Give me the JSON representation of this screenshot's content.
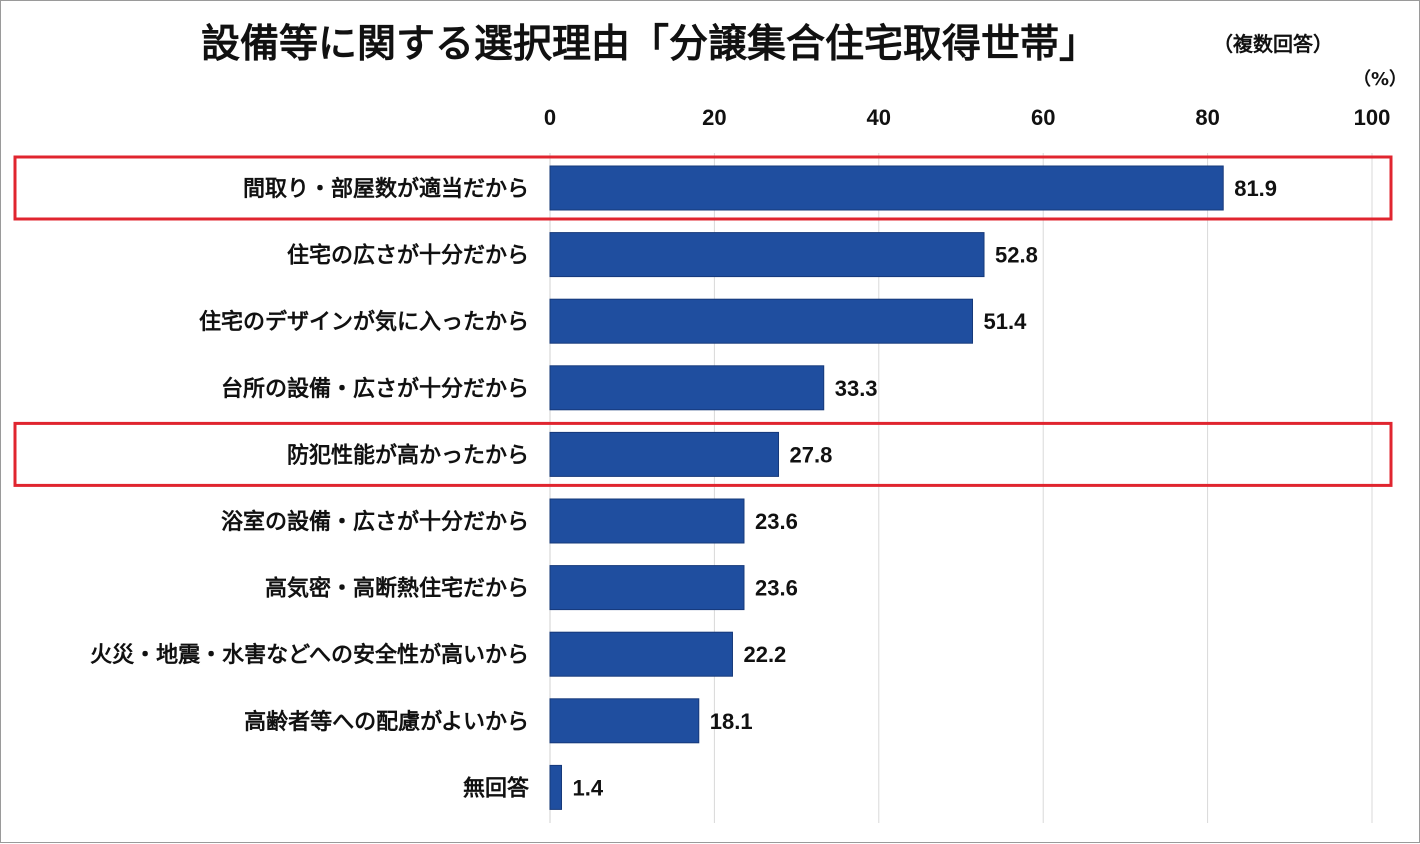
{
  "chart_data": {
    "type": "bar",
    "orientation": "horizontal",
    "title": "設備等に関する選択理由「分譲集合住宅取得世帯」",
    "subtitle": "（複数回答）",
    "unit_label": "（%）",
    "xlim": [
      0,
      100
    ],
    "x_ticks": [
      "0",
      "20",
      "40",
      "60",
      "80",
      "100"
    ],
    "grid": true,
    "categories": [
      "間取り・部屋数が適当だから",
      "住宅の広さが十分だから",
      "住宅のデザインが気に入ったから",
      "台所の設備・広さが十分だから",
      "防犯性能が高かったから",
      "浴室の設備・広さが十分だから",
      "高気密・高断熱住宅だから",
      "火災・地震・水害などへの安全性が高いから",
      "高齢者等への配慮がよいから",
      "無回答"
    ],
    "values": [
      81.9,
      52.8,
      51.4,
      33.3,
      27.8,
      23.6,
      23.6,
      22.2,
      18.1,
      1.4
    ],
    "value_labels": [
      "81.9",
      "52.8",
      "51.4",
      "33.3",
      "27.8",
      "23.6",
      "23.6",
      "22.2",
      "18.1",
      "1.4"
    ],
    "highlighted_categories": [
      "間取り・部屋数が適当だから",
      "防犯性能が高かったから"
    ],
    "colors": {
      "bar": "#1f4e9f",
      "highlight_box": "#e0252f",
      "grid": "#d9d9d9"
    }
  }
}
